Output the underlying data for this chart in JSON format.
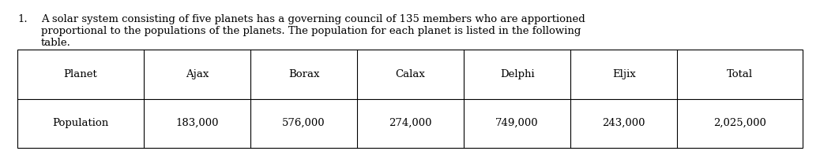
{
  "problem_number": "1.",
  "problem_text_line1": "A solar system consisting of five planets has a governing council of 135 members who are apportioned",
  "problem_text_line2": "proportional to the populations of the planets. The population for each planet is listed in the following",
  "problem_text_line3": "table.",
  "col_headers": [
    "Planet",
    "Ajax",
    "Borax",
    "Calax",
    "Delphi",
    "Eljix",
    "Total"
  ],
  "row_label": "Population",
  "row_values": [
    "183,000",
    "576,000",
    "274,000",
    "749,000",
    "243,000",
    "2,025,000"
  ],
  "bg_color": "#ffffff",
  "text_color": "#000000",
  "font_size": 9.5,
  "table_font_size": 9.5,
  "fig_width": 10.38,
  "fig_height": 1.92,
  "dpi": 100
}
